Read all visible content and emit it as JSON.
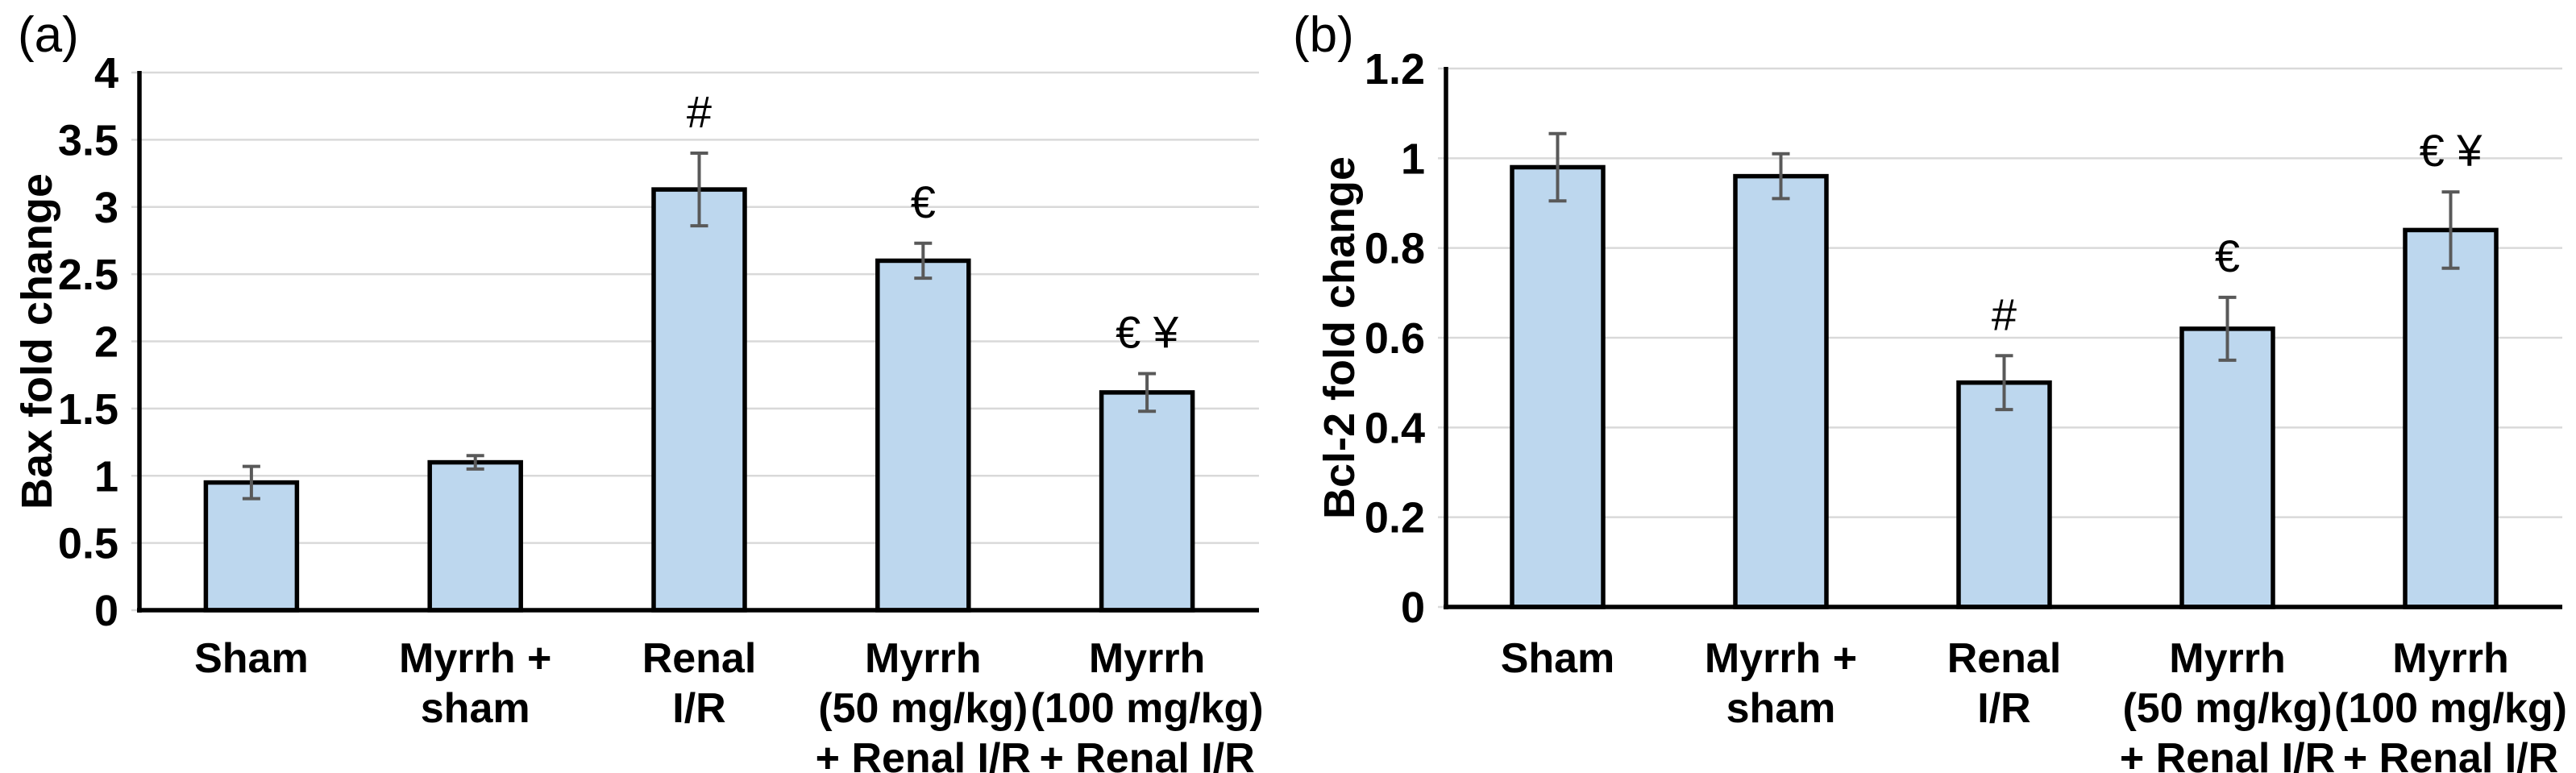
{
  "figure_title": "",
  "colors": {
    "bar_fill": "#BDD7EE",
    "bar_border": "#000000",
    "error_bar": "#595959",
    "gridline": "#D9D9D9",
    "axis": "#000000",
    "text": "#000000",
    "background": "#FFFFFF"
  },
  "chart_data": [
    {
      "type": "bar",
      "panel_label": "(a)",
      "title": "",
      "xlabel": "",
      "ylabel": "Bax fold change",
      "ylim": [
        0,
        4
      ],
      "ytick_step": 0.5,
      "ytick_labels": [
        "0",
        "0.5",
        "1",
        "1.5",
        "2",
        "2.5",
        "3",
        "3.5",
        "4"
      ],
      "categories": [
        "Sham",
        "Myrrh +\nsham",
        "Renal\nI/R",
        "Myrrh\n(50 mg/kg)\n+ Renal I/R",
        "Myrrh\n(100 mg/kg)\n+ Renal I/R"
      ],
      "values": [
        0.95,
        1.1,
        3.13,
        2.6,
        1.62
      ],
      "errors": [
        0.12,
        0.05,
        0.27,
        0.13,
        0.14
      ],
      "annotations": [
        "",
        "",
        "#",
        "€",
        "€ ¥"
      ],
      "grid": true,
      "legend": false
    },
    {
      "type": "bar",
      "panel_label": "(b)",
      "title": "",
      "xlabel": "",
      "ylabel": "Bcl-2 fold change",
      "ylim": [
        0,
        1.2
      ],
      "ytick_step": 0.2,
      "ytick_labels": [
        "0",
        "0.2",
        "0.4",
        "0.6",
        "0.8",
        "1",
        "1.2"
      ],
      "categories": [
        "Sham",
        "Myrrh +\nsham",
        "Renal\nI/R",
        "Myrrh\n(50 mg/kg)\n+ Renal I/R",
        "Myrrh\n(100 mg/kg)\n+ Renal I/R"
      ],
      "values": [
        0.98,
        0.96,
        0.5,
        0.62,
        0.84
      ],
      "errors": [
        0.075,
        0.05,
        0.06,
        0.07,
        0.085
      ],
      "annotations": [
        "",
        "",
        "#",
        "€",
        "€ ¥"
      ],
      "grid": true,
      "legend": false
    }
  ]
}
